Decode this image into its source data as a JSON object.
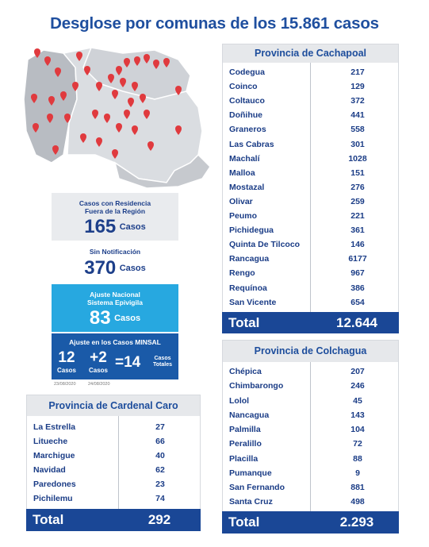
{
  "title": "Desglose por comunas de los 15.861 casos",
  "cachapoal": {
    "title": "Provincia de Cachapoal",
    "rows": [
      [
        "Codegua",
        217
      ],
      [
        "Coinco",
        129
      ],
      [
        "Coltauco",
        372
      ],
      [
        "Doñihue",
        441
      ],
      [
        "Graneros",
        558
      ],
      [
        "Las Cabras",
        301
      ],
      [
        "Machalí",
        1028
      ],
      [
        "Malloa",
        151
      ],
      [
        "Mostazal",
        276
      ],
      [
        "Olivar",
        259
      ],
      [
        "Peumo",
        221
      ],
      [
        "Pichidegua",
        361
      ],
      [
        "Quinta De Tilcoco",
        146
      ],
      [
        "Rancagua",
        6177
      ],
      [
        "Rengo",
        967
      ],
      [
        "Requínoa",
        386
      ],
      [
        "San Vicente",
        654
      ]
    ],
    "total": [
      "Total",
      "12.644"
    ]
  },
  "colchagua": {
    "title": "Provincia de Colchagua",
    "rows": [
      [
        "Chépica",
        207
      ],
      [
        "Chimbarongo",
        246
      ],
      [
        "Lolol",
        45
      ],
      [
        "Nancagua",
        143
      ],
      [
        "Palmilla",
        104
      ],
      [
        "Peralillo",
        72
      ],
      [
        "Placilla",
        88
      ],
      [
        "Pumanque",
        9
      ],
      [
        "San Fernando",
        881
      ],
      [
        "Santa Cruz",
        498
      ]
    ],
    "total": [
      "Total",
      "2.293"
    ]
  },
  "cardenal_caro": {
    "title": "Provincia de Cardenal Caro",
    "rows": [
      [
        "La Estrella",
        27
      ],
      [
        "Litueche",
        66
      ],
      [
        "Marchigue",
        40
      ],
      [
        "Navidad",
        62
      ],
      [
        "Paredones",
        23
      ],
      [
        "Pichilemu",
        74
      ]
    ],
    "total": [
      "Total",
      292
    ]
  },
  "boxes": {
    "fuera": {
      "label": "Casos con Residencia Fuera de la Región",
      "value": 165,
      "unit": "Casos"
    },
    "sin_notificacion": {
      "label": "Sin Notificación",
      "value": 370,
      "unit": "Casos"
    },
    "ajuste_nacional": {
      "label": "Ajuste Nacional Sistema Epivigila",
      "value": 83,
      "unit": "Casos"
    },
    "ajuste_minsal": {
      "label": "Ajuste en los Casos MINSAL",
      "a": 12,
      "a_unit": "Casos",
      "a_date": "23/08/2020",
      "b": "+2",
      "b_unit": "Casos",
      "b_date": "24/08/2020",
      "result": "=14",
      "result_unit": "Casos Totales"
    }
  }
}
